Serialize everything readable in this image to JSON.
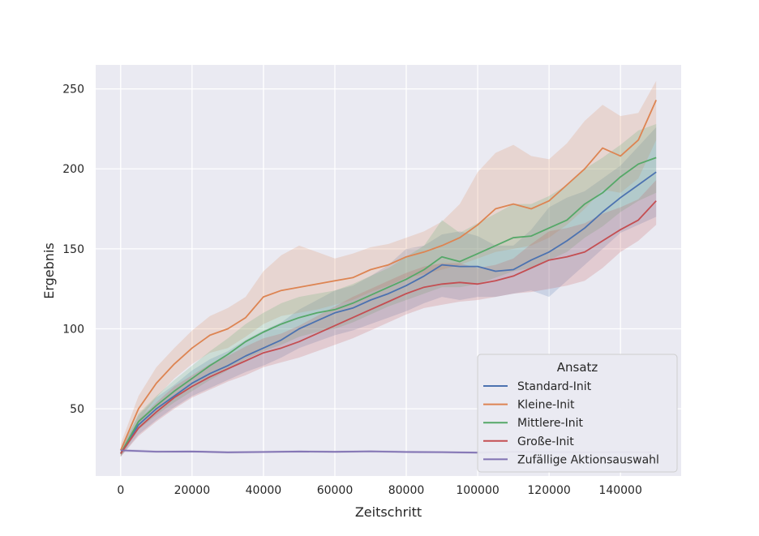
{
  "chart_data": {
    "type": "line",
    "xlabel": "Zeitschritt",
    "ylabel": "Ergebnis",
    "xlim": [
      -7000,
      157000
    ],
    "ylim": [
      8,
      265
    ],
    "xticks": [
      0,
      20000,
      40000,
      60000,
      80000,
      100000,
      120000,
      140000
    ],
    "yticks": [
      50,
      100,
      150,
      200,
      250
    ],
    "grid": true,
    "legend": {
      "title": "Ansatz",
      "placement": "lower-right"
    },
    "series": [
      {
        "name": "Standard-Init",
        "color": "#4c72b0",
        "x": [
          0,
          5000,
          10000,
          15000,
          20000,
          25000,
          30000,
          35000,
          40000,
          45000,
          50000,
          55000,
          60000,
          65000,
          70000,
          75000,
          80000,
          85000,
          90000,
          95000,
          100000,
          105000,
          110000,
          115000,
          120000,
          125000,
          130000,
          135000,
          140000,
          145000,
          150000
        ],
        "y": [
          22,
          40,
          50,
          58,
          66,
          72,
          77,
          83,
          88,
          93,
          100,
          105,
          110,
          113,
          118,
          122,
          127,
          133,
          140,
          139,
          139,
          136,
          137,
          143,
          148,
          155,
          163,
          173,
          182,
          190,
          198
        ],
        "lower": [
          20,
          34,
          43,
          51,
          58,
          63,
          68,
          73,
          77,
          82,
          88,
          92,
          96,
          99,
          103,
          107,
          111,
          116,
          120,
          118,
          120,
          120,
          122,
          124,
          120,
          130,
          140,
          150,
          160,
          165,
          170
        ],
        "upper": [
          25,
          46,
          57,
          65,
          74,
          81,
          86,
          93,
          99,
          104,
          112,
          118,
          124,
          127,
          133,
          140,
          150,
          152,
          159,
          161,
          158,
          152,
          152,
          162,
          176,
          182,
          186,
          194,
          202,
          214,
          226
        ]
      },
      {
        "name": "Kleine-Init",
        "color": "#dd8452",
        "x": [
          0,
          5000,
          10000,
          15000,
          20000,
          25000,
          30000,
          35000,
          40000,
          45000,
          50000,
          55000,
          60000,
          65000,
          70000,
          75000,
          80000,
          85000,
          90000,
          95000,
          100000,
          105000,
          110000,
          115000,
          120000,
          125000,
          130000,
          135000,
          140000,
          145000,
          150000
        ],
        "y": [
          24,
          50,
          66,
          78,
          88,
          96,
          100,
          107,
          120,
          124,
          126,
          128,
          130,
          132,
          137,
          140,
          145,
          148,
          152,
          157,
          165,
          175,
          178,
          175,
          180,
          190,
          200,
          213,
          208,
          218,
          243
        ],
        "lower": [
          20,
          42,
          57,
          69,
          78,
          85,
          88,
          95,
          103,
          108,
          110,
          112,
          115,
          118,
          123,
          127,
          132,
          134,
          137,
          140,
          144,
          148,
          150,
          152,
          157,
          165,
          175,
          187,
          185,
          194,
          218
        ],
        "upper": [
          28,
          58,
          76,
          88,
          99,
          108,
          113,
          120,
          136,
          146,
          152,
          148,
          144,
          147,
          151,
          153,
          157,
          161,
          167,
          178,
          198,
          210,
          215,
          208,
          206,
          216,
          230,
          240,
          233,
          235,
          255
        ]
      },
      {
        "name": "Mittlere-Init",
        "color": "#55a868",
        "x": [
          0,
          5000,
          10000,
          15000,
          20000,
          25000,
          30000,
          35000,
          40000,
          45000,
          50000,
          55000,
          60000,
          65000,
          70000,
          75000,
          80000,
          85000,
          90000,
          95000,
          100000,
          105000,
          110000,
          115000,
          120000,
          125000,
          130000,
          135000,
          140000,
          145000,
          150000
        ],
        "y": [
          22,
          42,
          52,
          61,
          69,
          77,
          84,
          92,
          98,
          103,
          107,
          110,
          112,
          116,
          121,
          126,
          131,
          137,
          145,
          142,
          147,
          152,
          157,
          158,
          163,
          168,
          178,
          185,
          195,
          203,
          207
        ],
        "lower": [
          20,
          37,
          46,
          54,
          61,
          68,
          74,
          81,
          86,
          90,
          95,
          98,
          100,
          104,
          109,
          114,
          118,
          122,
          126,
          126,
          128,
          132,
          136,
          138,
          143,
          148,
          157,
          164,
          173,
          180,
          185
        ],
        "upper": [
          24,
          47,
          58,
          68,
          77,
          86,
          94,
          103,
          110,
          116,
          120,
          122,
          124,
          128,
          133,
          138,
          145,
          152,
          168,
          160,
          166,
          172,
          178,
          178,
          183,
          190,
          200,
          207,
          215,
          224,
          228
        ]
      },
      {
        "name": "Große-Init",
        "color": "#c44e52",
        "x": [
          0,
          5000,
          10000,
          15000,
          20000,
          25000,
          30000,
          35000,
          40000,
          45000,
          50000,
          55000,
          60000,
          65000,
          70000,
          75000,
          80000,
          85000,
          90000,
          95000,
          100000,
          105000,
          110000,
          115000,
          120000,
          125000,
          130000,
          135000,
          140000,
          145000,
          150000
        ],
        "y": [
          22,
          38,
          48,
          57,
          64,
          70,
          75,
          80,
          85,
          88,
          92,
          97,
          102,
          107,
          112,
          117,
          122,
          126,
          128,
          129,
          128,
          130,
          133,
          138,
          143,
          145,
          148,
          155,
          162,
          168,
          180
        ],
        "lower": [
          20,
          33,
          42,
          50,
          57,
          62,
          67,
          71,
          76,
          79,
          82,
          86,
          90,
          94,
          99,
          104,
          109,
          113,
          115,
          117,
          118,
          120,
          122,
          123,
          125,
          127,
          130,
          138,
          148,
          155,
          165
        ],
        "upper": [
          24,
          43,
          54,
          64,
          71,
          78,
          83,
          89,
          94,
          97,
          102,
          108,
          114,
          120,
          125,
          130,
          135,
          139,
          141,
          141,
          138,
          140,
          144,
          153,
          161,
          163,
          166,
          172,
          176,
          181,
          193
        ]
      },
      {
        "name": "Zufällige Aktionsauswahl",
        "color": "#8172b3",
        "x": [
          0,
          10000,
          20000,
          30000,
          40000,
          50000,
          60000,
          70000,
          80000,
          90000,
          100000,
          110000,
          120000,
          130000,
          140000,
          150000
        ],
        "y": [
          24,
          23.2,
          23.3,
          22.8,
          23.0,
          23.3,
          23.1,
          23.4,
          23.0,
          22.9,
          22.6,
          23.1,
          23.0,
          22.8,
          22.9,
          22.8
        ],
        "lower": [
          23,
          22.4,
          22.5,
          22.0,
          22.2,
          22.5,
          22.3,
          22.6,
          22.2,
          22.1,
          21.8,
          22.3,
          22.2,
          22.0,
          22.1,
          22.0
        ],
        "upper": [
          25,
          24.0,
          24.1,
          23.6,
          23.8,
          24.1,
          23.9,
          24.2,
          23.8,
          23.7,
          23.4,
          23.9,
          23.8,
          23.6,
          23.7,
          23.6
        ]
      }
    ]
  }
}
